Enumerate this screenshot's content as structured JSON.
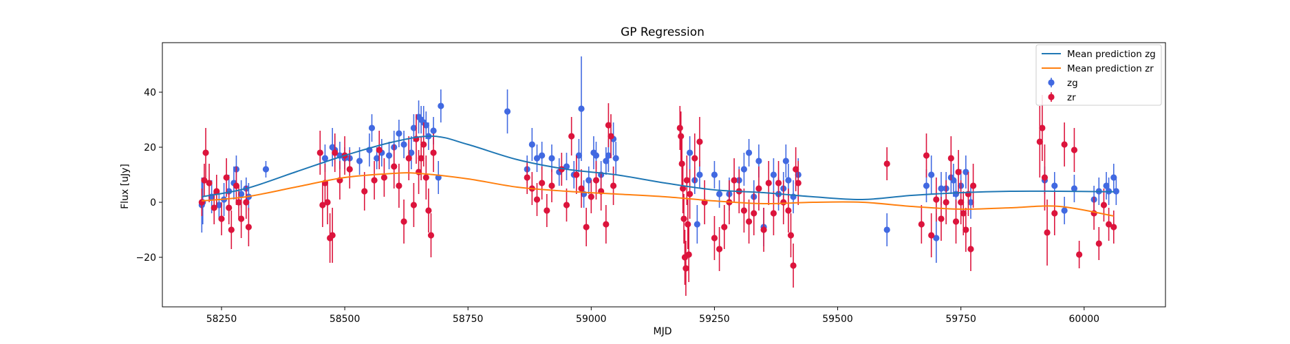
{
  "chart_data": {
    "type": "scatter",
    "title": "GP Regression",
    "xlabel": "MJD",
    "ylabel": "Flux [uJy]",
    "xlim": [
      58130,
      60165
    ],
    "ylim": [
      -38,
      58
    ],
    "xticks": [
      58250,
      58500,
      58750,
      59000,
      59250,
      59500,
      59750,
      60000
    ],
    "yticks": [
      -20,
      0,
      20,
      40
    ],
    "grid": false,
    "legend_position": "top-right",
    "colors": {
      "zg_line": "#1f77b4",
      "zr_line": "#ff7f0e",
      "zg_points": "#4169e1",
      "zr_points": "#dc143c"
    },
    "lines": [
      {
        "name": "Mean prediction zg",
        "x": [
          58210,
          58300,
          58400,
          58500,
          58600,
          58680,
          58750,
          58850,
          58950,
          59050,
          59150,
          59250,
          59350,
          59450,
          59550,
          59650,
          59750,
          59850,
          59950,
          60060
        ],
        "y": [
          2,
          5,
          11,
          17,
          22,
          24,
          21,
          15.5,
          12,
          10,
          7,
          4.5,
          3.5,
          2,
          1,
          2.5,
          3.5,
          4,
          4,
          3.8
        ]
      },
      {
        "name": "Mean prediction zr",
        "x": [
          58210,
          58300,
          58400,
          58500,
          58600,
          58650,
          58750,
          58850,
          58950,
          59050,
          59150,
          59250,
          59350,
          59450,
          59550,
          59650,
          59750,
          59850,
          59950,
          60060
        ],
        "y": [
          0.5,
          2,
          5.5,
          9,
          10.5,
          10.5,
          8.5,
          5.5,
          4,
          3,
          2,
          0.5,
          -0.5,
          0,
          0,
          -1.5,
          -2.5,
          -2,
          -1.5,
          -5
        ]
      }
    ],
    "series": [
      {
        "name": "zg",
        "points": [
          [
            58210,
            -1,
            10
          ],
          [
            58212,
            0,
            8
          ],
          [
            58230,
            2,
            6
          ],
          [
            58245,
            -1,
            5
          ],
          [
            58255,
            1,
            6
          ],
          [
            58265,
            4,
            6
          ],
          [
            58275,
            7,
            6
          ],
          [
            58280,
            12,
            5
          ],
          [
            58290,
            3,
            5
          ],
          [
            58300,
            5,
            4
          ],
          [
            58305,
            2,
            5
          ],
          [
            58340,
            12,
            3
          ],
          [
            58460,
            16,
            5
          ],
          [
            58475,
            20,
            7
          ],
          [
            58480,
            19,
            5
          ],
          [
            58490,
            17,
            5
          ],
          [
            58500,
            16,
            4
          ],
          [
            58510,
            16,
            4
          ],
          [
            58530,
            15,
            5
          ],
          [
            58550,
            19,
            6
          ],
          [
            58555,
            27,
            5
          ],
          [
            58565,
            16,
            4
          ],
          [
            58575,
            18,
            5
          ],
          [
            58590,
            17,
            5
          ],
          [
            58600,
            20,
            6
          ],
          [
            58610,
            25,
            5
          ],
          [
            58620,
            21,
            5
          ],
          [
            58635,
            18,
            6
          ],
          [
            58640,
            27,
            5
          ],
          [
            58650,
            31,
            6
          ],
          [
            58655,
            30,
            5
          ],
          [
            58660,
            29,
            6
          ],
          [
            58665,
            28,
            5
          ],
          [
            58670,
            24,
            5
          ],
          [
            58680,
            26,
            5
          ],
          [
            58690,
            9,
            6
          ],
          [
            58695,
            35,
            6
          ],
          [
            58830,
            33,
            8
          ],
          [
            58870,
            12,
            5
          ],
          [
            58880,
            21,
            6
          ],
          [
            58890,
            16,
            5
          ],
          [
            58900,
            17,
            5
          ],
          [
            58920,
            16,
            5
          ],
          [
            58935,
            11,
            5
          ],
          [
            58950,
            13,
            5
          ],
          [
            58965,
            10,
            5
          ],
          [
            58975,
            17,
            6
          ],
          [
            58980,
            34,
            19
          ],
          [
            58985,
            3,
            5
          ],
          [
            58995,
            8,
            5
          ],
          [
            59005,
            18,
            6
          ],
          [
            59010,
            17,
            5
          ],
          [
            59020,
            10,
            5
          ],
          [
            59030,
            15,
            5
          ],
          [
            59035,
            17,
            6
          ],
          [
            59045,
            23,
            6
          ],
          [
            59050,
            16,
            6
          ],
          [
            59200,
            18,
            6
          ],
          [
            59210,
            8,
            5
          ],
          [
            59215,
            -8,
            7
          ],
          [
            59220,
            10,
            5
          ],
          [
            59250,
            10,
            5
          ],
          [
            59260,
            3,
            5
          ],
          [
            59280,
            3,
            6
          ],
          [
            59300,
            8,
            5
          ],
          [
            59310,
            12,
            6
          ],
          [
            59320,
            18,
            5
          ],
          [
            59330,
            2,
            6
          ],
          [
            59340,
            15,
            6
          ],
          [
            59350,
            -9,
            7
          ],
          [
            59370,
            10,
            6
          ],
          [
            59380,
            3,
            6
          ],
          [
            59390,
            5,
            6
          ],
          [
            59395,
            15,
            6
          ],
          [
            59400,
            8,
            6
          ],
          [
            59410,
            2,
            6
          ],
          [
            59420,
            10,
            6
          ],
          [
            59600,
            -10,
            6
          ],
          [
            59680,
            6,
            6
          ],
          [
            59690,
            10,
            7
          ],
          [
            59700,
            -13,
            9
          ],
          [
            59710,
            5,
            6
          ],
          [
            59720,
            5,
            6
          ],
          [
            59730,
            9,
            6
          ],
          [
            59735,
            8,
            6
          ],
          [
            59740,
            3,
            5
          ],
          [
            59750,
            6,
            6
          ],
          [
            59760,
            11,
            6
          ],
          [
            59770,
            0,
            6
          ],
          [
            59920,
            8,
            5
          ],
          [
            59940,
            6,
            5
          ],
          [
            59960,
            -3,
            5
          ],
          [
            59980,
            5,
            5
          ],
          [
            60020,
            1,
            5
          ],
          [
            60030,
            4,
            5
          ],
          [
            60045,
            6,
            5
          ],
          [
            60050,
            4,
            5
          ],
          [
            60060,
            9,
            5
          ],
          [
            60065,
            4,
            5
          ]
        ]
      },
      {
        "name": "zr",
        "points": [
          [
            58210,
            0,
            5
          ],
          [
            58215,
            8,
            6
          ],
          [
            58218,
            18,
            9
          ],
          [
            58225,
            7,
            7
          ],
          [
            58235,
            -2,
            6
          ],
          [
            58240,
            4,
            6
          ],
          [
            58250,
            -6,
            6
          ],
          [
            58260,
            9,
            7
          ],
          [
            58265,
            -2,
            6
          ],
          [
            58270,
            -10,
            7
          ],
          [
            58280,
            6,
            7
          ],
          [
            58285,
            0,
            6
          ],
          [
            58290,
            -6,
            7
          ],
          [
            58300,
            0,
            6
          ],
          [
            58305,
            -9,
            7
          ],
          [
            58450,
            18,
            8
          ],
          [
            58455,
            -1,
            8
          ],
          [
            58460,
            7,
            7
          ],
          [
            58465,
            0,
            8
          ],
          [
            58470,
            -13,
            9
          ],
          [
            58475,
            -12,
            10
          ],
          [
            58480,
            18,
            7
          ],
          [
            58490,
            8,
            7
          ],
          [
            58500,
            17,
            7
          ],
          [
            58510,
            12,
            7
          ],
          [
            58540,
            4,
            7
          ],
          [
            58560,
            8,
            7
          ],
          [
            58570,
            19,
            7
          ],
          [
            58580,
            9,
            7
          ],
          [
            58600,
            13,
            8
          ],
          [
            58610,
            6,
            8
          ],
          [
            58620,
            -7,
            8
          ],
          [
            58630,
            16,
            8
          ],
          [
            58640,
            -1,
            8
          ],
          [
            58645,
            23,
            9
          ],
          [
            58650,
            11,
            8
          ],
          [
            58655,
            16,
            8
          ],
          [
            58660,
            21,
            8
          ],
          [
            58665,
            9,
            8
          ],
          [
            58670,
            -3,
            8
          ],
          [
            58675,
            -12,
            8
          ],
          [
            58680,
            18,
            7
          ],
          [
            58870,
            9,
            6
          ],
          [
            58880,
            5,
            6
          ],
          [
            58890,
            1,
            6
          ],
          [
            58900,
            7,
            6
          ],
          [
            58910,
            -3,
            6
          ],
          [
            58920,
            6,
            6
          ],
          [
            58940,
            12,
            6
          ],
          [
            58950,
            -1,
            6
          ],
          [
            58960,
            24,
            7
          ],
          [
            58970,
            10,
            7
          ],
          [
            58980,
            5,
            7
          ],
          [
            58990,
            -9,
            7
          ],
          [
            59000,
            2,
            6
          ],
          [
            59010,
            8,
            7
          ],
          [
            59020,
            4,
            7
          ],
          [
            59030,
            -8,
            7
          ],
          [
            59035,
            28,
            8
          ],
          [
            59040,
            24,
            8
          ],
          [
            59045,
            6,
            7
          ],
          [
            59180,
            27,
            8
          ],
          [
            59182,
            24,
            9
          ],
          [
            59184,
            14,
            9
          ],
          [
            59186,
            5,
            9
          ],
          [
            59188,
            -6,
            9
          ],
          [
            59190,
            -20,
            10
          ],
          [
            59192,
            -24,
            10
          ],
          [
            59194,
            8,
            9
          ],
          [
            59196,
            -8,
            9
          ],
          [
            59198,
            -19,
            10
          ],
          [
            59200,
            3,
            9
          ],
          [
            59210,
            16,
            9
          ],
          [
            59220,
            22,
            9
          ],
          [
            59230,
            0,
            8
          ],
          [
            59250,
            -13,
            8
          ],
          [
            59260,
            -17,
            8
          ],
          [
            59270,
            -9,
            8
          ],
          [
            59280,
            0,
            8
          ],
          [
            59290,
            8,
            8
          ],
          [
            59300,
            4,
            8
          ],
          [
            59310,
            -3,
            8
          ],
          [
            59320,
            -7,
            8
          ],
          [
            59330,
            -4,
            8
          ],
          [
            59340,
            5,
            8
          ],
          [
            59350,
            -10,
            8
          ],
          [
            59360,
            7,
            8
          ],
          [
            59370,
            -4,
            8
          ],
          [
            59380,
            7,
            8
          ],
          [
            59390,
            0,
            8
          ],
          [
            59400,
            -3,
            8
          ],
          [
            59405,
            -12,
            8
          ],
          [
            59410,
            -23,
            8
          ],
          [
            59415,
            12,
            8
          ],
          [
            59420,
            7,
            8
          ],
          [
            59600,
            14,
            6
          ],
          [
            59670,
            -8,
            7
          ],
          [
            59680,
            17,
            8
          ],
          [
            59690,
            -12,
            8
          ],
          [
            59700,
            1,
            8
          ],
          [
            59710,
            -6,
            8
          ],
          [
            59720,
            0,
            8
          ],
          [
            59730,
            16,
            8
          ],
          [
            59740,
            -7,
            8
          ],
          [
            59745,
            11,
            8
          ],
          [
            59750,
            0,
            8
          ],
          [
            59755,
            -4,
            8
          ],
          [
            59760,
            -10,
            8
          ],
          [
            59765,
            3,
            8
          ],
          [
            59770,
            -17,
            8
          ],
          [
            59775,
            6,
            8
          ],
          [
            59910,
            22,
            13
          ],
          [
            59915,
            27,
            12
          ],
          [
            59920,
            9,
            12
          ],
          [
            59925,
            -11,
            12
          ],
          [
            59940,
            -4,
            8
          ],
          [
            59960,
            21,
            8
          ],
          [
            59980,
            19,
            8
          ],
          [
            59990,
            -19,
            5
          ],
          [
            60020,
            -4,
            6
          ],
          [
            60030,
            -15,
            6
          ],
          [
            60040,
            -1,
            6
          ],
          [
            60050,
            -8,
            6
          ],
          [
            60060,
            -9,
            6
          ]
        ]
      }
    ]
  }
}
